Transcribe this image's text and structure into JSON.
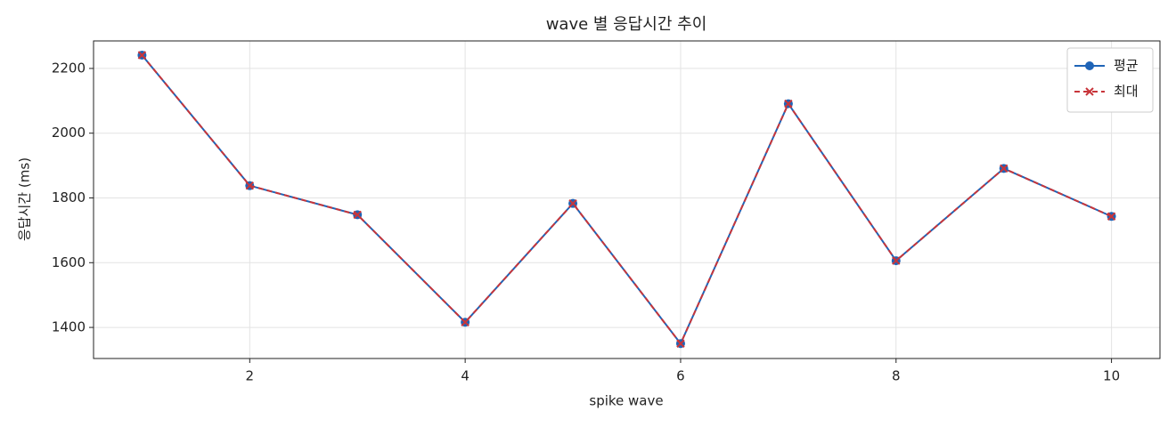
{
  "chart_data": {
    "type": "line",
    "title": "wave 별 응답시간 추이",
    "x_label": "spike wave",
    "y_label": "응답시간 (ms)",
    "x": [
      1,
      2,
      3,
      4,
      5,
      6,
      7,
      8,
      9,
      10
    ],
    "series": [
      {
        "name": "평균",
        "color": "#1f64b7",
        "marker": "circle",
        "linestyle": "solid",
        "values": [
          2241,
          1838,
          1748,
          1416,
          1783,
          1350,
          2091,
          1606,
          1891,
          1743
        ]
      },
      {
        "name": "최대",
        "color": "#c8353a",
        "marker": "x",
        "linestyle": "dashed",
        "values": [
          2241,
          1838,
          1748,
          1416,
          1783,
          1350,
          2091,
          1606,
          1891,
          1743
        ]
      }
    ],
    "xlim": [
      0.55,
      10.45
    ],
    "xticks": [
      2,
      4,
      6,
      8,
      10
    ],
    "ylim": [
      1304,
      2285
    ],
    "yticks": [
      1400,
      1600,
      1800,
      2000,
      2200
    ],
    "grid": true,
    "legend": "upper right"
  }
}
